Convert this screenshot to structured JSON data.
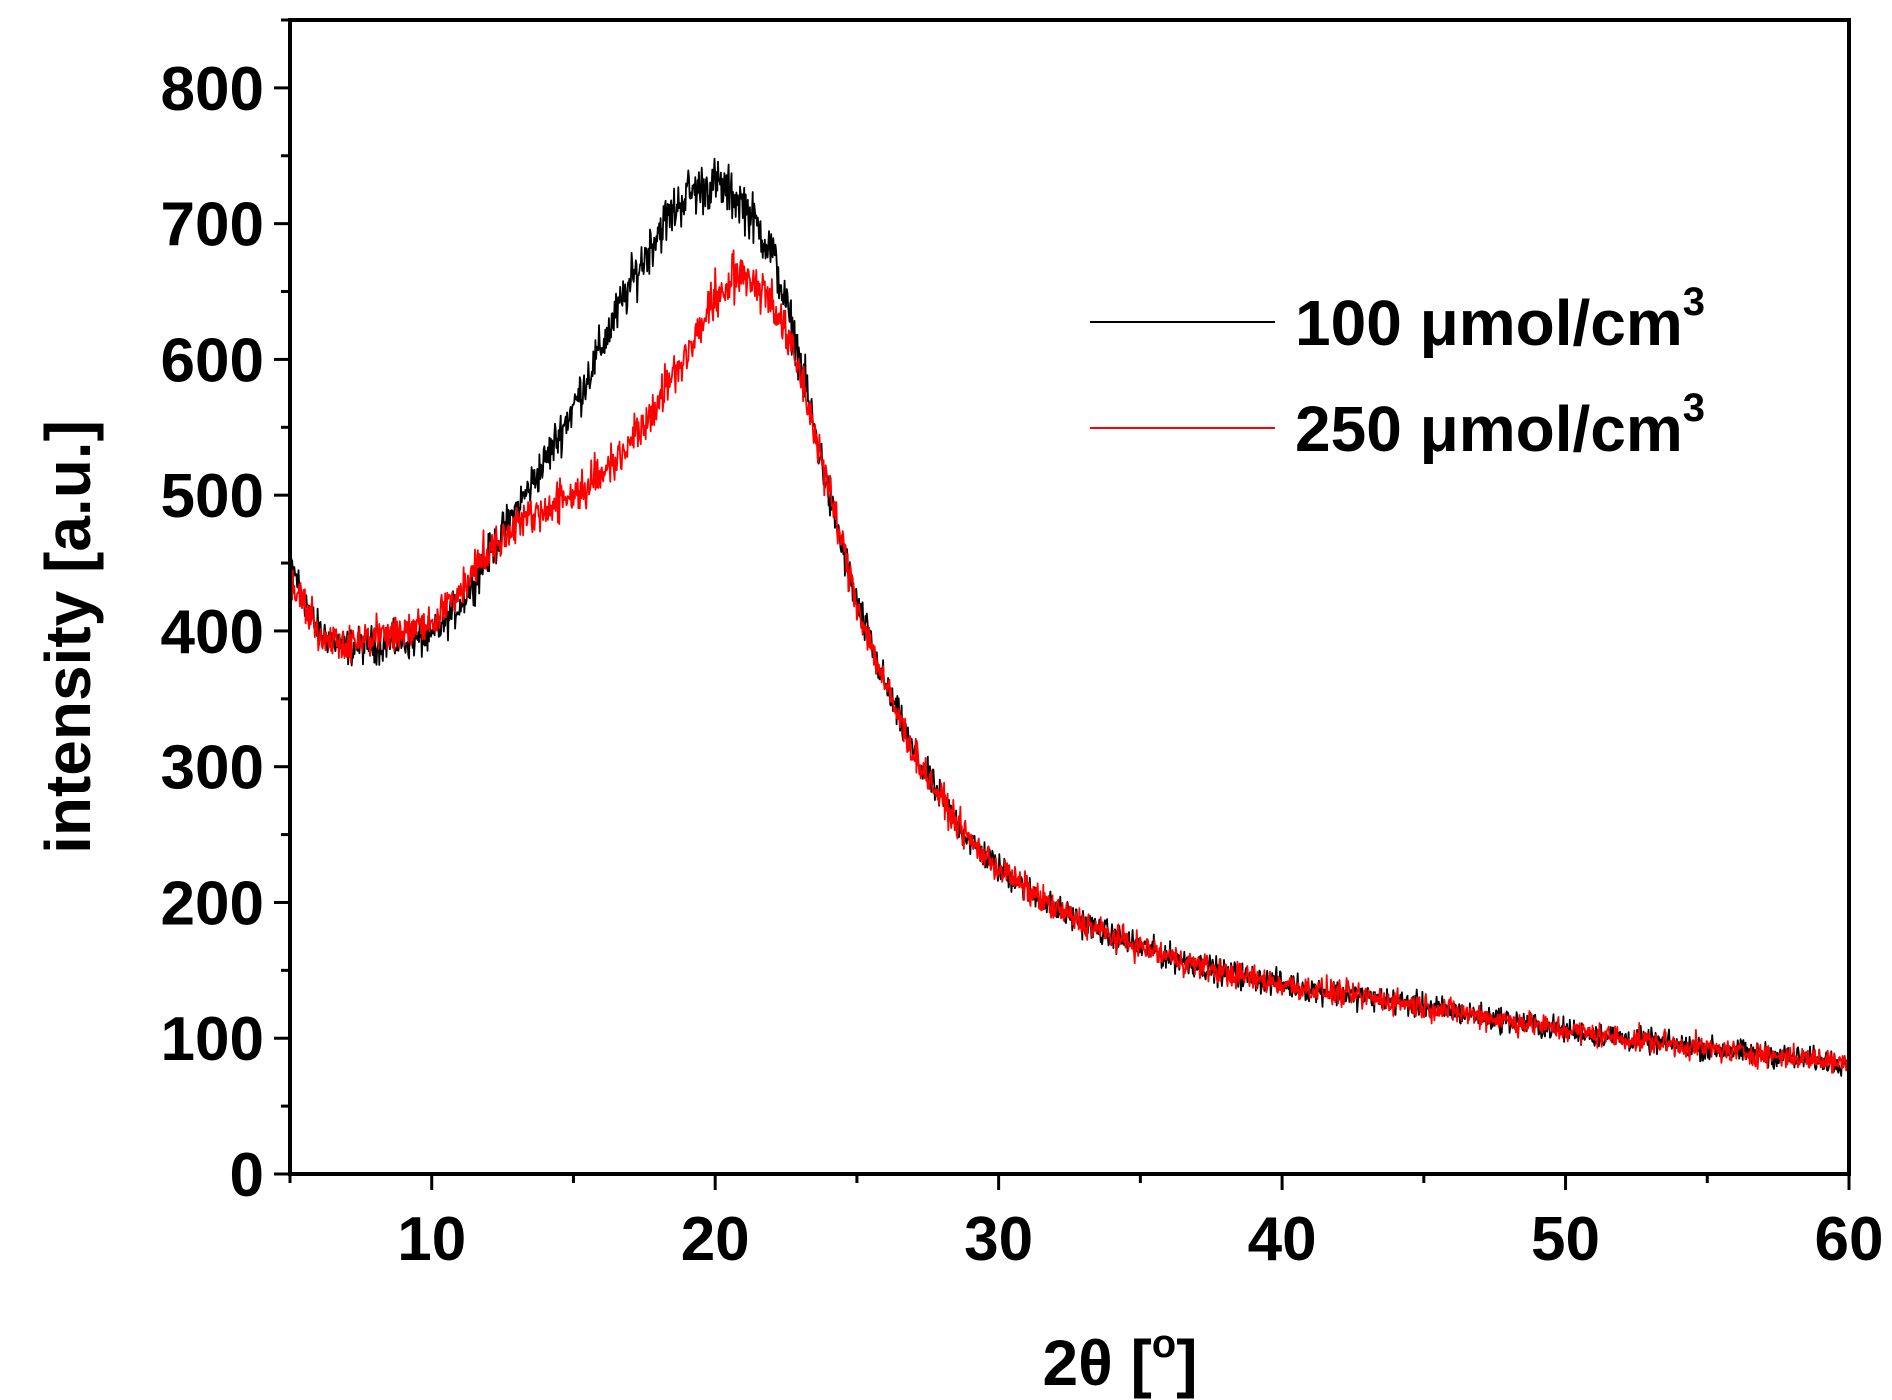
{
  "chart_data": {
    "type": "line",
    "title": "",
    "xlabel": "2θ [°]",
    "xlabel_main": "2θ [",
    "xlabel_deg": "o",
    "xlabel_close": "]",
    "ylabel": "intensity [a.u.]",
    "xlim": [
      5,
      60
    ],
    "ylim": [
      0,
      850
    ],
    "xticks": [
      10,
      20,
      30,
      40,
      50,
      60
    ],
    "xtick_labels": [
      "10",
      "20",
      "30",
      "40",
      "50",
      "60"
    ],
    "yticks": [
      0,
      100,
      200,
      300,
      400,
      500,
      600,
      700,
      800
    ],
    "ytick_labels": [
      "0",
      "100",
      "200",
      "300",
      "400",
      "500",
      "600",
      "700",
      "800"
    ],
    "x_minor_step": 5,
    "y_minor_step": 50,
    "legend_position": "top-right",
    "x": [
      5,
      6,
      7,
      8,
      9,
      10,
      11,
      12,
      13,
      14,
      15,
      16,
      17,
      18,
      19,
      20,
      21,
      22,
      23,
      24,
      25,
      26,
      27,
      28,
      29,
      30,
      32,
      34,
      36,
      38,
      40,
      42,
      44,
      46,
      48,
      50,
      52,
      54,
      56,
      58,
      60
    ],
    "series": [
      {
        "name": "100 μmol/cm3",
        "label_main": "100 μmol/cm",
        "label_sup": "3",
        "color": "#000000",
        "noise": 14,
        "values": [
          450,
          400,
          388,
          390,
          392,
          395,
          420,
          455,
          490,
          525,
          565,
          610,
          655,
          695,
          722,
          730,
          715,
          680,
          600,
          500,
          420,
          360,
          310,
          275,
          245,
          225,
          195,
          175,
          160,
          148,
          140,
          133,
          127,
          120,
          113,
          106,
          100,
          95,
          90,
          86,
          82
        ]
      },
      {
        "name": "250 μmol/cm3",
        "label_main": "250 μmol/cm",
        "label_sup": "3",
        "color": "#ff0000",
        "noise": 14,
        "values": [
          440,
          398,
          390,
          395,
          400,
          405,
          430,
          460,
          480,
          490,
          500,
          515,
          540,
          570,
          605,
          645,
          665,
          645,
          590,
          505,
          420,
          360,
          310,
          275,
          245,
          225,
          195,
          175,
          160,
          148,
          140,
          133,
          127,
          120,
          113,
          106,
          100,
          95,
          90,
          86,
          82
        ]
      }
    ]
  }
}
